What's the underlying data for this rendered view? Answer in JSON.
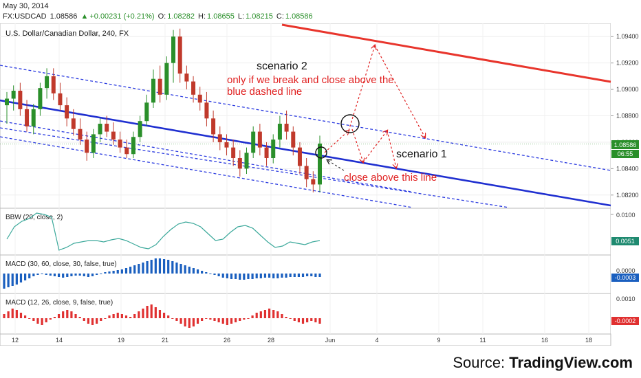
{
  "header": {
    "date": "May 30, 2014",
    "symbol": "FX:USDCAD",
    "last": "1.08586",
    "change": "+0.00231 (+0.21%)",
    "o_label": "O:",
    "o": "1.08282",
    "h_label": "H:",
    "h": "1.08655",
    "l_label": "L:",
    "l": "1.08215",
    "c_label": "C:",
    "c": "1.08586"
  },
  "chart_title": "U.S. Dollar/Canadian Dollar, 240, FX",
  "price_axis": {
    "ticks": [
      "1.09400",
      "1.09200",
      "1.09000",
      "1.08800",
      "1.08600",
      "1.08400",
      "1.08200"
    ],
    "current_label": "1.08586",
    "countdown": "06:55"
  },
  "time_axis": {
    "labels": [
      "12",
      "14",
      "19",
      "21",
      "26",
      "28",
      "Jun",
      "4",
      "9",
      "11",
      "16",
      "18"
    ]
  },
  "annotations": {
    "scenario2_title": "scenario 2",
    "scenario2_line1": "only if we break and close above the",
    "scenario2_line2": "blue dashed line",
    "scenario1": "scenario 1",
    "close_above": "close above this line"
  },
  "indicators": {
    "bbw": {
      "label": "BBW (20, close, 2)",
      "tick": "0.0100",
      "value": "0.0051"
    },
    "macd1": {
      "label": "MACD (30, 60, close, 30, false, true)",
      "tick": "0.0000",
      "value": "-0.0003"
    },
    "macd2": {
      "label": "MACD (12, 26, close, 9, false, true)",
      "tick": "0.0010",
      "value": "-0.0002"
    }
  },
  "footer": {
    "prefix": "Source: ",
    "brand": "TradingView.com"
  },
  "colors": {
    "up": "#2a8f2a",
    "down": "#c0392b",
    "resistance": "#e8352c",
    "channel": "#1f2fd0",
    "dashed": "#2a3ae0",
    "annotation": "#e02020",
    "bbw": "#3aa89a",
    "macd_blue": "#1a5fbf",
    "macd_red": "#e03030"
  },
  "chart_data": {
    "type": "candlestick",
    "title": "U.S. Dollar/Canadian Dollar, 240, FX",
    "yrange": [
      1.081,
      1.095
    ],
    "ylabels": [
      1.094,
      1.092,
      1.09,
      1.088,
      1.086,
      1.084,
      1.082
    ],
    "current_price": 1.08586,
    "candles": [
      [
        1.0888,
        1.0898,
        1.0874,
        1.0893
      ],
      [
        1.0893,
        1.0903,
        1.0884,
        1.0899
      ],
      [
        1.0899,
        1.0905,
        1.088,
        1.0885
      ],
      [
        1.0885,
        1.0892,
        1.0868,
        1.0872
      ],
      [
        1.0872,
        1.0889,
        1.0866,
        1.0885
      ],
      [
        1.0885,
        1.0905,
        1.088,
        1.0901
      ],
      [
        1.0901,
        1.0916,
        1.0893,
        1.091
      ],
      [
        1.091,
        1.0916,
        1.0892,
        1.0897
      ],
      [
        1.0897,
        1.0905,
        1.0884,
        1.0888
      ],
      [
        1.0888,
        1.0894,
        1.0872,
        1.0878
      ],
      [
        1.0878,
        1.0885,
        1.0865,
        1.087
      ],
      [
        1.087,
        1.0878,
        1.0858,
        1.0862
      ],
      [
        1.0862,
        1.0868,
        1.0846,
        1.0852
      ],
      [
        1.0852,
        1.087,
        1.0848,
        1.0866
      ],
      [
        1.0866,
        1.0878,
        1.086,
        1.0874
      ],
      [
        1.0874,
        1.088,
        1.0864,
        1.0868
      ],
      [
        1.0868,
        1.0875,
        1.0858,
        1.0862
      ],
      [
        1.0862,
        1.0868,
        1.0852,
        1.0856
      ],
      [
        1.0856,
        1.0862,
        1.0848,
        1.0851
      ],
      [
        1.0851,
        1.0868,
        1.0848,
        1.0864
      ],
      [
        1.0864,
        1.088,
        1.086,
        1.0876
      ],
      [
        1.0876,
        1.0896,
        1.0872,
        1.089
      ],
      [
        1.089,
        1.0915,
        1.0886,
        1.0908
      ],
      [
        1.0908,
        1.0918,
        1.089,
        1.0896
      ],
      [
        1.0896,
        1.0925,
        1.0892,
        1.092
      ],
      [
        1.092,
        1.0945,
        1.0905,
        1.094
      ],
      [
        1.094,
        1.0946,
        1.0905,
        1.0912
      ],
      [
        1.0912,
        1.0918,
        1.09,
        1.0906
      ],
      [
        1.0906,
        1.091,
        1.089,
        1.0896
      ],
      [
        1.0896,
        1.0902,
        1.0884,
        1.089
      ],
      [
        1.089,
        1.0898,
        1.0872,
        1.0878
      ],
      [
        1.0878,
        1.0884,
        1.086,
        1.0866
      ],
      [
        1.0866,
        1.0872,
        1.0854,
        1.086
      ],
      [
        1.086,
        1.0866,
        1.085,
        1.0856
      ],
      [
        1.0856,
        1.0862,
        1.0842,
        1.0848
      ],
      [
        1.0848,
        1.0854,
        1.0834,
        1.084
      ],
      [
        1.084,
        1.0856,
        1.0836,
        1.0852
      ],
      [
        1.0852,
        1.0872,
        1.0848,
        1.0868
      ],
      [
        1.0868,
        1.0874,
        1.085,
        1.0856
      ],
      [
        1.0856,
        1.086,
        1.0842,
        1.0848
      ],
      [
        1.0848,
        1.0866,
        1.0844,
        1.0862
      ],
      [
        1.0862,
        1.088,
        1.0856,
        1.0874
      ],
      [
        1.0874,
        1.0884,
        1.0862,
        1.0868
      ],
      [
        1.0868,
        1.0872,
        1.085,
        1.0856
      ],
      [
        1.0856,
        1.086,
        1.0836,
        1.0842
      ],
      [
        1.0842,
        1.0848,
        1.0826,
        1.0832
      ],
      [
        1.0832,
        1.0838,
        1.0822,
        1.0828
      ],
      [
        1.0828,
        1.0865,
        1.0822,
        1.0859
      ]
    ]
  }
}
